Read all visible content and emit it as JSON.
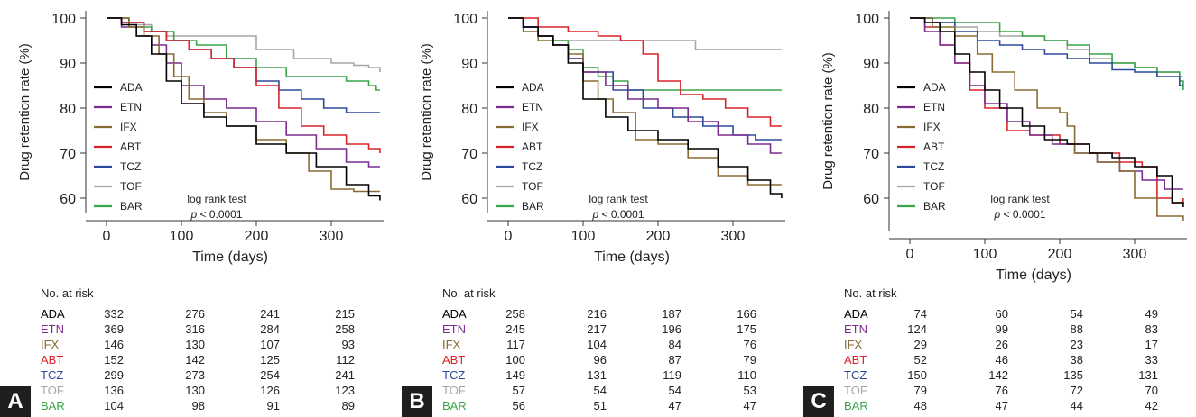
{
  "colors": {
    "ADA": "#000000",
    "ETN": "#7b2d8e",
    "IFX": "#8a6a34",
    "ABT": "#d9232b",
    "TCZ": "#2b4a9a",
    "TOF": "#a6a6a6",
    "BAR": "#3aa548"
  },
  "at_risk_title": "No. at risk",
  "chart_data": [
    {
      "type": "line",
      "panel_label": "A",
      "xlabel": "Time (days)",
      "ylabel": "Drug retention rate (%)",
      "xlim": [
        -30,
        365
      ],
      "ylim": [
        57,
        101
      ],
      "xticks": [
        0,
        100,
        200,
        300
      ],
      "yticks": [
        60,
        70,
        80,
        90,
        100
      ],
      "annotation": {
        "line1": "log rank test",
        "p_symbol": "p",
        "p_rest": " < 0.0001"
      },
      "legend_position": "left",
      "series": [
        {
          "name": "ADA",
          "x": [
            0,
            20,
            40,
            60,
            80,
            100,
            130,
            160,
            200,
            240,
            280,
            320,
            350,
            365
          ],
          "values": [
            100,
            98.5,
            96,
            92,
            86,
            81,
            78,
            76,
            72,
            70,
            67,
            63,
            60.5,
            59.5
          ]
        },
        {
          "name": "ETN",
          "x": [
            0,
            20,
            40,
            60,
            80,
            100,
            130,
            160,
            200,
            240,
            280,
            320,
            350,
            365
          ],
          "values": [
            100,
            98,
            96,
            94,
            90,
            85,
            82,
            80,
            77,
            74,
            71,
            68,
            67,
            67
          ]
        },
        {
          "name": "IFX",
          "x": [
            0,
            30,
            50,
            70,
            90,
            110,
            130,
            160,
            200,
            240,
            270,
            300,
            330,
            365
          ],
          "values": [
            100,
            98,
            96,
            92,
            87,
            82,
            79,
            76,
            73,
            70,
            66,
            62,
            61.5,
            61.5
          ]
        },
        {
          "name": "ABT",
          "x": [
            0,
            20,
            50,
            80,
            110,
            140,
            170,
            200,
            230,
            260,
            290,
            320,
            350,
            365
          ],
          "values": [
            100,
            99,
            97,
            95,
            93,
            91,
            89,
            85,
            80,
            76,
            74,
            72,
            71,
            70
          ]
        },
        {
          "name": "TCZ",
          "x": [
            0,
            20,
            50,
            80,
            110,
            140,
            170,
            200,
            230,
            260,
            290,
            320,
            350,
            365
          ],
          "values": [
            100,
            99,
            97,
            95,
            93,
            91,
            89,
            86,
            84,
            82,
            80,
            79,
            79,
            79
          ]
        },
        {
          "name": "TOF",
          "x": [
            0,
            30,
            60,
            80,
            100,
            150,
            200,
            250,
            300,
            330,
            350,
            365
          ],
          "values": [
            100,
            98.5,
            97,
            96,
            96,
            96,
            93,
            91,
            90,
            89.5,
            89,
            88
          ]
        },
        {
          "name": "BAR",
          "x": [
            0,
            30,
            60,
            90,
            120,
            160,
            200,
            240,
            280,
            320,
            350,
            360,
            365
          ],
          "values": [
            100,
            98,
            97,
            95,
            94,
            91,
            89,
            87,
            87,
            86,
            85,
            84,
            84
          ]
        }
      ],
      "at_risk": {
        "ADA": [
          "332",
          "276",
          "241",
          "215"
        ],
        "ETN": [
          "369",
          "316",
          "284",
          "258"
        ],
        "IFX": [
          "146",
          "130",
          "107",
          "93"
        ],
        "ABT": [
          "152",
          "142",
          "125",
          "112"
        ],
        "TCZ": [
          "299",
          "273",
          "254",
          "241"
        ],
        "TOF": [
          "136",
          "130",
          "126",
          "123"
        ],
        "BAR": [
          "104",
          "98",
          "91",
          "89"
        ]
      }
    },
    {
      "type": "line",
      "panel_label": "B",
      "xlabel": "Time (days)",
      "ylabel": "Drug retention rate (%)",
      "xlim": [
        -30,
        365
      ],
      "ylim": [
        57,
        101
      ],
      "xticks": [
        0,
        100,
        200,
        300
      ],
      "yticks": [
        60,
        70,
        80,
        90,
        100
      ],
      "annotation": {
        "line1": "log rank test",
        "p_symbol": "p",
        "p_rest": " < 0.0001"
      },
      "legend_position": "left",
      "series": [
        {
          "name": "ADA",
          "x": [
            0,
            20,
            40,
            60,
            80,
            100,
            130,
            160,
            200,
            240,
            280,
            320,
            350,
            365
          ],
          "values": [
            100,
            98,
            96,
            94,
            90,
            82,
            78,
            75,
            73,
            71,
            67,
            64,
            61,
            60
          ]
        },
        {
          "name": "ETN",
          "x": [
            0,
            20,
            40,
            60,
            80,
            100,
            130,
            160,
            200,
            240,
            280,
            320,
            350,
            365
          ],
          "values": [
            100,
            98,
            96,
            94,
            91,
            88,
            85,
            82,
            80,
            77,
            74,
            72,
            70,
            70
          ]
        },
        {
          "name": "IFX",
          "x": [
            0,
            20,
            40,
            60,
            80,
            100,
            120,
            140,
            170,
            200,
            240,
            280,
            320,
            365
          ],
          "values": [
            100,
            97,
            95,
            94,
            92,
            86,
            82,
            79,
            73,
            72,
            69,
            65,
            63,
            63
          ]
        },
        {
          "name": "ABT",
          "x": [
            0,
            40,
            80,
            120,
            150,
            180,
            200,
            230,
            260,
            290,
            320,
            350,
            365
          ],
          "values": [
            100,
            98,
            97,
            96,
            95,
            92,
            86,
            83,
            82,
            80,
            78,
            76,
            76
          ]
        },
        {
          "name": "TCZ",
          "x": [
            0,
            20,
            40,
            60,
            80,
            100,
            140,
            180,
            220,
            260,
            300,
            330,
            365
          ],
          "values": [
            100,
            98,
            96,
            94,
            91,
            88,
            84,
            80,
            78,
            76,
            74,
            73,
            73
          ]
        },
        {
          "name": "TOF",
          "x": [
            0,
            20,
            40,
            60,
            80,
            150,
            200,
            250,
            300,
            365
          ],
          "values": [
            100,
            98,
            96,
            95,
            95,
            95,
            95,
            93,
            93,
            93
          ]
        },
        {
          "name": "BAR",
          "x": [
            0,
            20,
            40,
            60,
            80,
            100,
            120,
            140,
            160,
            180,
            365
          ],
          "values": [
            100,
            98,
            96,
            95,
            93,
            89,
            87,
            86,
            84,
            84,
            84
          ]
        }
      ],
      "at_risk": {
        "ADA": [
          "258",
          "216",
          "187",
          "166"
        ],
        "ETN": [
          "245",
          "217",
          "196",
          "175"
        ],
        "IFX": [
          "117",
          "104",
          "84",
          "76"
        ],
        "ABT": [
          "100",
          "96",
          "87",
          "79"
        ],
        "TCZ": [
          "149",
          "131",
          "119",
          "110"
        ],
        "TOF": [
          "57",
          "54",
          "54",
          "53"
        ],
        "BAR": [
          "56",
          "51",
          "47",
          "47"
        ]
      }
    },
    {
      "type": "line",
      "panel_label": "C",
      "xlabel": "Time (days)",
      "ylabel": "Drug retention rate (%)",
      "xlim": [
        -30,
        365
      ],
      "ylim": [
        53,
        101
      ],
      "xticks": [
        0,
        100,
        200,
        300
      ],
      "yticks": [
        60,
        70,
        80,
        90,
        100
      ],
      "annotation": {
        "line1": "log rank test",
        "p_symbol": "p",
        "p_rest": " < 0.0001"
      },
      "legend_position": "left",
      "series": [
        {
          "name": "ADA",
          "x": [
            0,
            20,
            40,
            60,
            80,
            100,
            120,
            150,
            180,
            210,
            240,
            270,
            300,
            330,
            350,
            365
          ],
          "values": [
            100,
            99,
            97,
            92,
            88,
            84,
            80,
            76,
            73,
            72,
            70,
            69,
            67,
            65,
            59,
            58
          ]
        },
        {
          "name": "ETN",
          "x": [
            0,
            20,
            40,
            60,
            80,
            100,
            130,
            160,
            190,
            220,
            250,
            280,
            310,
            340,
            365
          ],
          "values": [
            100,
            97,
            94,
            90,
            85,
            81,
            77,
            74,
            72,
            70,
            68,
            66,
            64,
            62,
            62
          ]
        },
        {
          "name": "IFX",
          "x": [
            0,
            30,
            60,
            90,
            110,
            140,
            170,
            200,
            210,
            220,
            250,
            280,
            300,
            330,
            365
          ],
          "values": [
            100,
            98,
            96,
            92,
            88,
            84,
            80,
            79,
            76,
            70,
            68,
            66,
            60,
            56,
            55
          ]
        },
        {
          "name": "ABT",
          "x": [
            0,
            20,
            40,
            60,
            80,
            100,
            130,
            160,
            200,
            240,
            280,
            310,
            330,
            350,
            365
          ],
          "values": [
            100,
            98,
            94,
            90,
            84,
            80,
            75,
            74,
            72,
            70,
            68,
            67,
            60,
            59,
            60
          ]
        },
        {
          "name": "TCZ",
          "x": [
            0,
            30,
            60,
            90,
            120,
            150,
            180,
            210,
            240,
            270,
            300,
            330,
            360,
            365
          ],
          "values": [
            100,
            99,
            97,
            95,
            94,
            93,
            92,
            91,
            90,
            88.5,
            88,
            87,
            85,
            85
          ]
        },
        {
          "name": "TOF",
          "x": [
            0,
            30,
            60,
            90,
            120,
            150,
            180,
            210,
            240,
            270,
            300,
            330,
            360,
            365
          ],
          "values": [
            100,
            99,
            98,
            97,
            96,
            96,
            95,
            93,
            91,
            90,
            89,
            88,
            87,
            87
          ]
        },
        {
          "name": "BAR",
          "x": [
            0,
            30,
            60,
            90,
            120,
            150,
            180,
            210,
            240,
            270,
            300,
            330,
            360,
            365
          ],
          "values": [
            100,
            100,
            99,
            99,
            97,
            96,
            95,
            94,
            92,
            90,
            89,
            88,
            86,
            84
          ]
        }
      ],
      "at_risk": {
        "ADA": [
          "74",
          "60",
          "54",
          "49"
        ],
        "ETN": [
          "124",
          "99",
          "88",
          "83"
        ],
        "IFX": [
          "29",
          "26",
          "23",
          "17"
        ],
        "ABT": [
          "52",
          "46",
          "38",
          "33"
        ],
        "TCZ": [
          "150",
          "142",
          "135",
          "131"
        ],
        "TOF": [
          "79",
          "76",
          "72",
          "70"
        ],
        "BAR": [
          "48",
          "47",
          "44",
          "42"
        ]
      }
    }
  ]
}
